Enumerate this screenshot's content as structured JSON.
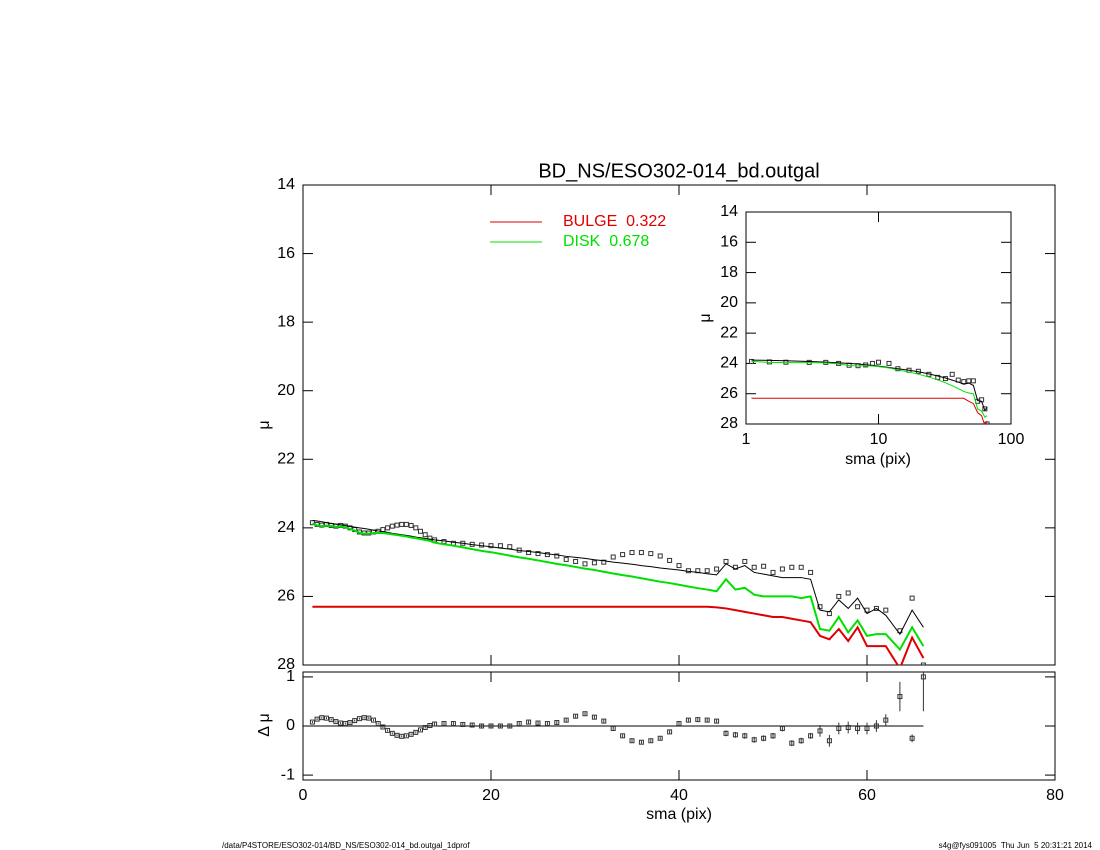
{
  "footer_left": "/data/P4STORE/ESO302-014/BD_NS/ESO302-014_bd.outgal_1dprof",
  "footer_right": "s4g@fys091005  Thu Jun  5 20:31:21 2014",
  "chart_data": [
    {
      "type": "line",
      "title": "BD_NS/ESO302-014_bd.outgal",
      "y_label": "μ",
      "xlim": [
        0,
        80
      ],
      "ylim": [
        28,
        14
      ],
      "yticks": [
        14,
        16,
        18,
        20,
        22,
        24,
        26,
        28
      ],
      "x": [
        1,
        1.5,
        2,
        2.5,
        3,
        3.5,
        4,
        4.5,
        5,
        5.5,
        6,
        6.5,
        7,
        7.5,
        8,
        8.5,
        9,
        9.5,
        10,
        10.5,
        11,
        11.5,
        12,
        12.5,
        13,
        13.5,
        14,
        15,
        16,
        17,
        18,
        19,
        20,
        21,
        22,
        23,
        24,
        25,
        26,
        27,
        28,
        29,
        30,
        31,
        32,
        33,
        34,
        35,
        36,
        37,
        38,
        39,
        40,
        41,
        42,
        43,
        44,
        45,
        46,
        47,
        48,
        49,
        50,
        51,
        52,
        53,
        54,
        55,
        56,
        57,
        58,
        59,
        60,
        61,
        62,
        63.5,
        64.8,
        66
      ],
      "series": [
        {
          "marker": "square",
          "color": "#333333",
          "values": [
            23.85,
            23.9,
            23.92,
            23.9,
            23.93,
            23.95,
            23.93,
            23.95,
            24.0,
            24.05,
            24.12,
            24.15,
            24.15,
            24.12,
            24.1,
            24.05,
            24.0,
            23.95,
            23.92,
            23.9,
            23.9,
            23.93,
            24.0,
            24.1,
            24.2,
            24.3,
            24.35,
            24.4,
            24.45,
            24.45,
            24.48,
            24.5,
            24.52,
            24.52,
            24.55,
            24.65,
            24.72,
            24.75,
            24.78,
            24.82,
            24.92,
            24.98,
            25.05,
            25.02,
            25.0,
            24.85,
            24.78,
            24.72,
            24.72,
            24.75,
            24.82,
            24.95,
            25.1,
            25.25,
            25.25,
            25.25,
            25.2,
            24.98,
            25.15,
            24.98,
            25.15,
            25.12,
            25.3,
            25.2,
            25.15,
            25.15,
            25.3,
            26.3,
            26.5,
            26.0,
            25.9,
            26.3,
            26.4,
            26.35,
            26.4,
            27.0,
            26.05,
            28.0
          ]
        },
        {
          "color": "#000000",
          "values": [
            23.78,
            23.8,
            23.82,
            23.85,
            23.87,
            23.89,
            23.91,
            23.93,
            23.96,
            23.98,
            24.0,
            24.02,
            24.04,
            24.07,
            24.09,
            24.11,
            24.13,
            24.16,
            24.18,
            24.2,
            24.22,
            24.24,
            24.27,
            24.29,
            24.31,
            24.33,
            24.35,
            24.38,
            24.42,
            24.45,
            24.49,
            24.52,
            24.55,
            24.59,
            24.62,
            24.66,
            24.69,
            24.72,
            24.76,
            24.79,
            24.83,
            24.86,
            24.89,
            24.93,
            24.96,
            25.0,
            25.03,
            25.06,
            25.1,
            25.13,
            25.17,
            25.2,
            25.23,
            25.27,
            25.3,
            25.34,
            25.37,
            25.05,
            25.2,
            25.1,
            25.3,
            25.35,
            25.4,
            25.45,
            25.45,
            25.45,
            25.5,
            26.4,
            26.45,
            26.1,
            26.35,
            26.05,
            26.5,
            26.35,
            26.55,
            27.1,
            26.4,
            26.9
          ]
        },
        {
          "name": "BULGE  0.322",
          "color": "#e00000",
          "values": [
            26.3,
            26.3,
            26.3,
            26.3,
            26.3,
            26.3,
            26.3,
            26.3,
            26.3,
            26.3,
            26.3,
            26.3,
            26.3,
            26.3,
            26.3,
            26.3,
            26.3,
            26.3,
            26.3,
            26.3,
            26.3,
            26.3,
            26.3,
            26.3,
            26.3,
            26.3,
            26.3,
            26.3,
            26.3,
            26.3,
            26.3,
            26.3,
            26.3,
            26.3,
            26.3,
            26.3,
            26.3,
            26.3,
            26.3,
            26.3,
            26.3,
            26.3,
            26.3,
            26.3,
            26.3,
            26.3,
            26.3,
            26.3,
            26.3,
            26.3,
            26.3,
            26.3,
            26.3,
            26.3,
            26.3,
            26.3,
            26.32,
            26.35,
            26.4,
            26.45,
            26.5,
            26.55,
            26.6,
            26.6,
            26.65,
            26.7,
            26.75,
            27.15,
            27.25,
            26.95,
            27.3,
            26.9,
            27.45,
            27.45,
            27.45,
            28.1,
            27.2,
            27.8
          ]
        },
        {
          "name": "DISK  0.678",
          "color": "#00e000",
          "values": [
            23.87,
            23.93,
            23.95,
            23.93,
            23.95,
            23.97,
            23.96,
            23.98,
            24.03,
            24.08,
            24.14,
            24.17,
            24.17,
            24.15,
            24.15,
            24.15,
            24.17,
            24.19,
            24.21,
            24.23,
            24.25,
            24.28,
            24.3,
            24.33,
            24.35,
            24.38,
            24.43,
            24.48,
            24.52,
            24.57,
            24.62,
            24.67,
            24.71,
            24.76,
            24.81,
            24.86,
            24.9,
            24.95,
            25.0,
            25.05,
            25.09,
            25.14,
            25.19,
            25.23,
            25.28,
            25.33,
            25.38,
            25.42,
            25.47,
            25.52,
            25.57,
            25.61,
            25.66,
            25.71,
            25.76,
            25.8,
            25.85,
            25.5,
            25.8,
            25.75,
            25.95,
            26.0,
            26.0,
            26.0,
            26.0,
            26.05,
            26.0,
            26.95,
            27.0,
            26.6,
            27.05,
            26.7,
            27.15,
            27.1,
            27.1,
            27.55,
            26.9,
            27.45
          ]
        }
      ]
    },
    {
      "type": "line",
      "x_label": "sma (pix)",
      "y_label": "μ",
      "log_x": true,
      "xlim": [
        1,
        100
      ],
      "xticks": [
        1,
        10,
        100
      ],
      "ylim": [
        28,
        14
      ],
      "yticks": [
        14,
        16,
        18,
        20,
        22,
        24,
        26,
        28
      ],
      "x": [
        1.1,
        1.5,
        2,
        3,
        4,
        5,
        6,
        7,
        8,
        9,
        10,
        12,
        14,
        17,
        20,
        24,
        28,
        32,
        36,
        40,
        44,
        48,
        52,
        56,
        60,
        63.5,
        66
      ],
      "series": [
        {
          "marker": "square",
          "color": "#333333",
          "values": [
            23.87,
            23.9,
            23.92,
            23.93,
            23.93,
            24.0,
            24.12,
            24.15,
            24.1,
            24.0,
            23.92,
            24.0,
            24.35,
            24.45,
            24.52,
            24.72,
            24.92,
            25.0,
            24.72,
            25.1,
            25.2,
            25.15,
            25.15,
            26.5,
            26.4,
            27.0,
            28.0
          ]
        },
        {
          "color": "#000000",
          "values": [
            23.78,
            23.8,
            23.82,
            23.87,
            23.91,
            23.96,
            24.0,
            24.04,
            24.09,
            24.13,
            24.18,
            24.27,
            24.35,
            24.45,
            24.55,
            24.69,
            24.83,
            24.96,
            25.1,
            25.23,
            25.37,
            25.3,
            25.45,
            26.45,
            26.5,
            27.1,
            26.9
          ]
        },
        {
          "color": "#e00000",
          "values": [
            26.3,
            26.3,
            26.3,
            26.3,
            26.3,
            26.3,
            26.3,
            26.3,
            26.3,
            26.3,
            26.3,
            26.3,
            26.3,
            26.3,
            26.3,
            26.3,
            26.3,
            26.3,
            26.3,
            26.3,
            26.3,
            26.5,
            26.65,
            27.25,
            27.45,
            28.1,
            27.8
          ]
        },
        {
          "color": "#00e000",
          "values": [
            23.87,
            23.93,
            23.95,
            23.95,
            23.96,
            24.03,
            24.14,
            24.17,
            24.15,
            24.17,
            24.21,
            24.3,
            24.43,
            24.57,
            24.71,
            24.9,
            25.09,
            25.28,
            25.47,
            25.66,
            25.85,
            25.95,
            26.0,
            27.0,
            27.15,
            27.55,
            27.45
          ]
        }
      ]
    },
    {
      "type": "errorbar",
      "x_label": "sma (pix)",
      "y_label": "Δ μ",
      "xlim": [
        0,
        80
      ],
      "xticks": [
        0,
        20,
        40,
        60,
        80
      ],
      "ylim": [
        -1.1,
        1.1
      ],
      "yticks": [
        -1,
        0,
        1
      ],
      "x": [
        1,
        1.5,
        2,
        2.5,
        3,
        3.5,
        4,
        4.5,
        5,
        5.5,
        6,
        6.5,
        7,
        7.5,
        8,
        8.5,
        9,
        9.5,
        10,
        10.5,
        11,
        11.5,
        12,
        12.5,
        13,
        13.5,
        14,
        15,
        16,
        17,
        18,
        19,
        20,
        21,
        22,
        23,
        24,
        25,
        26,
        27,
        28,
        29,
        30,
        31,
        32,
        33,
        34,
        35,
        36,
        37,
        38,
        39,
        40,
        41,
        42,
        43,
        44,
        45,
        46,
        47,
        48,
        49,
        50,
        51,
        52,
        53,
        54,
        55,
        56,
        57,
        58,
        59,
        60,
        61,
        62,
        63.5,
        64.8,
        66
      ],
      "series": [
        {
          "marker": "square",
          "color": "#333333",
          "values": [
            0.08,
            0.14,
            0.17,
            0.16,
            0.13,
            0.09,
            0.06,
            0.05,
            0.07,
            0.11,
            0.15,
            0.17,
            0.16,
            0.12,
            0.05,
            -0.02,
            -0.09,
            -0.15,
            -0.19,
            -0.21,
            -0.2,
            -0.17,
            -0.13,
            -0.08,
            -0.03,
            0.01,
            0.04,
            0.05,
            0.05,
            0.03,
            0.02,
            0.0,
            0.0,
            0.0,
            0.0,
            0.05,
            0.08,
            0.06,
            0.05,
            0.07,
            0.12,
            0.2,
            0.25,
            0.18,
            0.1,
            -0.05,
            -0.2,
            -0.3,
            -0.33,
            -0.3,
            -0.25,
            -0.12,
            0.05,
            0.12,
            0.13,
            0.12,
            0.1,
            -0.15,
            -0.18,
            -0.2,
            -0.28,
            -0.25,
            -0.2,
            -0.05,
            -0.35,
            -0.3,
            -0.2,
            -0.1,
            -0.3,
            -0.05,
            -0.03,
            -0.05,
            -0.05,
            0.0,
            0.12,
            0.6,
            -0.25,
            1.0
          ],
          "errors": [
            0.02,
            0.02,
            0.02,
            0.02,
            0.02,
            0.02,
            0.02,
            0.02,
            0.02,
            0.02,
            0.02,
            0.02,
            0.02,
            0.02,
            0.02,
            0.02,
            0.02,
            0.02,
            0.02,
            0.02,
            0.02,
            0.02,
            0.02,
            0.02,
            0.02,
            0.02,
            0.03,
            0.03,
            0.03,
            0.03,
            0.03,
            0.03,
            0.03,
            0.03,
            0.03,
            0.03,
            0.03,
            0.03,
            0.03,
            0.03,
            0.03,
            0.03,
            0.03,
            0.03,
            0.03,
            0.03,
            0.03,
            0.03,
            0.03,
            0.03,
            0.03,
            0.03,
            0.03,
            0.03,
            0.03,
            0.03,
            0.03,
            0.06,
            0.06,
            0.06,
            0.06,
            0.06,
            0.06,
            0.06,
            0.06,
            0.06,
            0.06,
            0.12,
            0.12,
            0.12,
            0.12,
            0.12,
            0.12,
            0.12,
            0.12,
            0.3,
            0.08,
            0.7
          ]
        }
      ]
    }
  ]
}
